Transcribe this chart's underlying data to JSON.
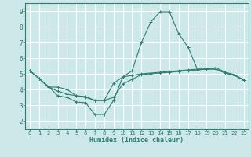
{
  "xlabel": "Humidex (Indice chaleur)",
  "background_color": "#cce8e8",
  "grid_color": "#ffffff",
  "line_color": "#2e7d72",
  "xlim": [
    -0.5,
    23.5
  ],
  "ylim": [
    1.5,
    9.5
  ],
  "xticks": [
    0,
    1,
    2,
    3,
    4,
    5,
    6,
    7,
    8,
    9,
    10,
    11,
    12,
    13,
    14,
    15,
    16,
    17,
    18,
    19,
    20,
    21,
    22,
    23
  ],
  "yticks": [
    2,
    3,
    4,
    5,
    6,
    7,
    8,
    9
  ],
  "line1_x": [
    0,
    1,
    2,
    3,
    4,
    5,
    6,
    7,
    8,
    9,
    10,
    11,
    12,
    13,
    14,
    15,
    16,
    17,
    18,
    19,
    20,
    21,
    22,
    23
  ],
  "line1_y": [
    5.2,
    4.7,
    4.2,
    3.6,
    3.5,
    3.2,
    3.15,
    2.4,
    2.4,
    3.3,
    4.8,
    5.2,
    7.0,
    8.3,
    8.95,
    8.95,
    7.55,
    6.7,
    5.3,
    5.3,
    5.4,
    5.1,
    4.95,
    4.6
  ],
  "line2_x": [
    0,
    1,
    2,
    3,
    4,
    5,
    6,
    7,
    8,
    9,
    10,
    11,
    12,
    13,
    14,
    15,
    16,
    17,
    18,
    19,
    20,
    21,
    22,
    23
  ],
  "line2_y": [
    5.2,
    4.7,
    4.15,
    4.15,
    4.0,
    3.6,
    3.55,
    3.3,
    3.3,
    4.4,
    4.8,
    4.9,
    5.0,
    5.05,
    5.1,
    5.15,
    5.2,
    5.25,
    5.3,
    5.3,
    5.3,
    5.05,
    4.9,
    4.6
  ],
  "line3_x": [
    0,
    1,
    2,
    3,
    4,
    5,
    6,
    7,
    8,
    9,
    10,
    11,
    12,
    13,
    14,
    15,
    16,
    17,
    18,
    19,
    20,
    21,
    22,
    23
  ],
  "line3_y": [
    5.2,
    4.7,
    4.15,
    3.9,
    3.7,
    3.6,
    3.5,
    3.3,
    3.3,
    3.5,
    4.35,
    4.65,
    4.95,
    5.0,
    5.05,
    5.1,
    5.15,
    5.2,
    5.25,
    5.3,
    5.3,
    5.05,
    4.9,
    4.6
  ]
}
